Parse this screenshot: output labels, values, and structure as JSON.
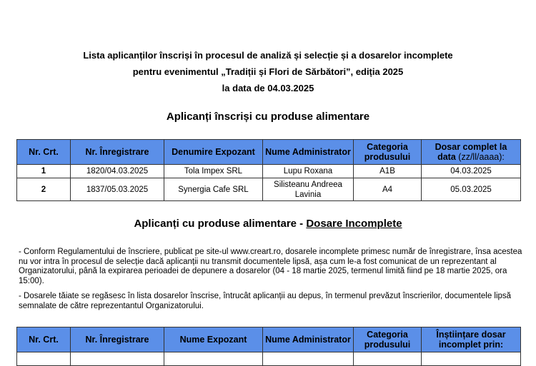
{
  "title": {
    "line1": "Lista aplicanților înscriși în procesul de analiză și selecție și a dosarelor incomplete",
    "line2": "pentru evenimentul „Tradiții și Flori de Sărbători”, ediția 2025",
    "line3": "la data de 04.03.2025"
  },
  "section1": {
    "heading": "Aplicanți înscriși cu produse alimentare",
    "headers": [
      "Nr. Crt.",
      "Nr. Înregistrare",
      "Denumire Expozant",
      "Nume Administrator",
      "Categoria produsului",
      "Dosar complet la",
      "data",
      "(zz/ll/aaaa):"
    ],
    "rows": [
      [
        "1",
        "1820/04.03.2025",
        "Tola Impex SRL",
        "Lupu Roxana",
        "A1B",
        "04.03.2025"
      ],
      [
        "2",
        "1837/05.03.2025",
        "Synergia Cafe SRL",
        "Silisteanu Andreea Lavinia",
        "A4",
        "05.03.2025"
      ]
    ]
  },
  "section2": {
    "heading_prefix": "Aplicanți cu produse alimentare - ",
    "heading_underlined": "Dosare Incomplete",
    "note1": "- Conform Regulamentului de înscriere, publicat pe site-ul www.creart.ro, dosarele incomplete primesc număr de înregistrare, însa acestea nu vor intra în procesul de selecție dacă aplicanții nu transmit documentele lipsă, așa cum le-a fost comunicat de un reprezentant al Organizatorului, până la expirarea perioadei de depunere a dosarelor (04 - 18 martie 2025, termenul limită fiind pe 18 martie 2025, ora 15:00).",
    "note2": "- Dosarele tăiate se regăsesc în lista dosarelor înscrise, întrucât aplicanții au depus, în termenul prevăzut înscrierilor, documentele lipsă semnalate de către reprezentantul Organizatorului.",
    "headers": [
      "Nr. Crt.",
      "Nr. Înregistrare",
      "Nume Expozant",
      "Nume Administrator",
      "Categoria produsului",
      "Înștiințare dosar incomplet prin:"
    ]
  },
  "colors": {
    "header_bg": "#5b8fe8"
  }
}
